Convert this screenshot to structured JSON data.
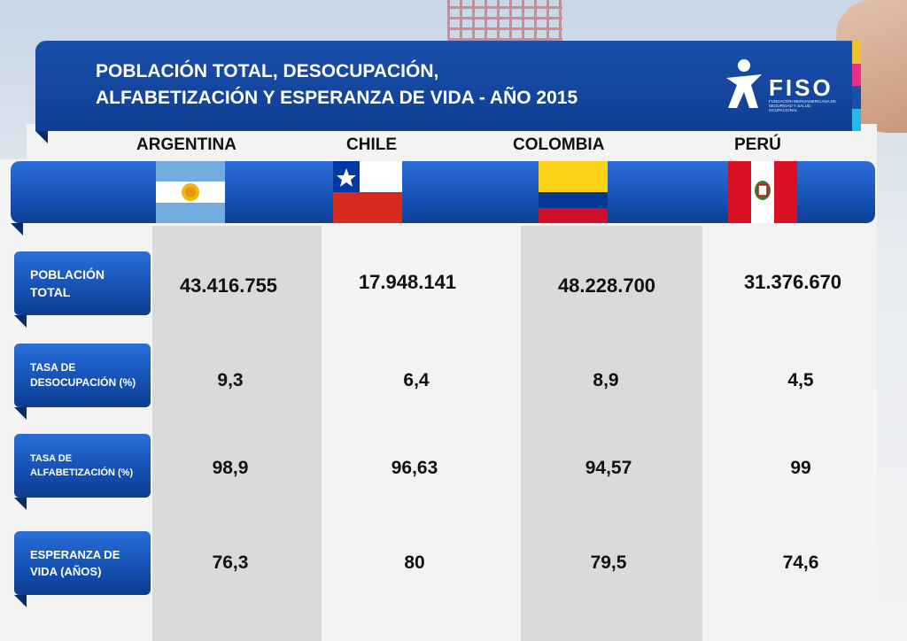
{
  "title": {
    "line1": "POBLACIÓN TOTAL, DESOCUPACIÓN,",
    "line2": "ALFABETIZACIÓN Y ESPERANZA DE VIDA - AÑO 2015"
  },
  "logo": {
    "word": "FISO",
    "subtitle": "FUNDACIÓN IBEROAMERICANA DE SEGURIDAD Y SALUD OCUPACIONAL"
  },
  "brand_colors": [
    "#f2c12e",
    "#e8308a",
    "#1a4faa",
    "#2bb7e6"
  ],
  "countries": [
    "ARGENTINA",
    "CHILE",
    "COLOMBIA",
    "PERÚ"
  ],
  "flags": [
    "argentina-flag-icon",
    "chile-flag-icon",
    "colombia-flag-icon",
    "peru-flag-icon"
  ],
  "rows": [
    {
      "label": "POBLACIÓN TOTAL",
      "values": [
        "43.416.755",
        "17.948.141",
        "48.228.700",
        "31.376.670"
      ]
    },
    {
      "label": "TASA DE DESOCUPACIÓN (%)",
      "values": [
        "9,3",
        "6,4",
        "8,9",
        "4,5"
      ]
    },
    {
      "label": "TASA DE ALFABETIZACIÓN (%)",
      "values": [
        "98,9",
        "96,63",
        "94,57",
        "99"
      ]
    },
    {
      "label": "ESPERANZA DE VIDA (AÑOS)",
      "values": [
        "76,3",
        "80",
        "79,5",
        "74,6"
      ]
    }
  ]
}
